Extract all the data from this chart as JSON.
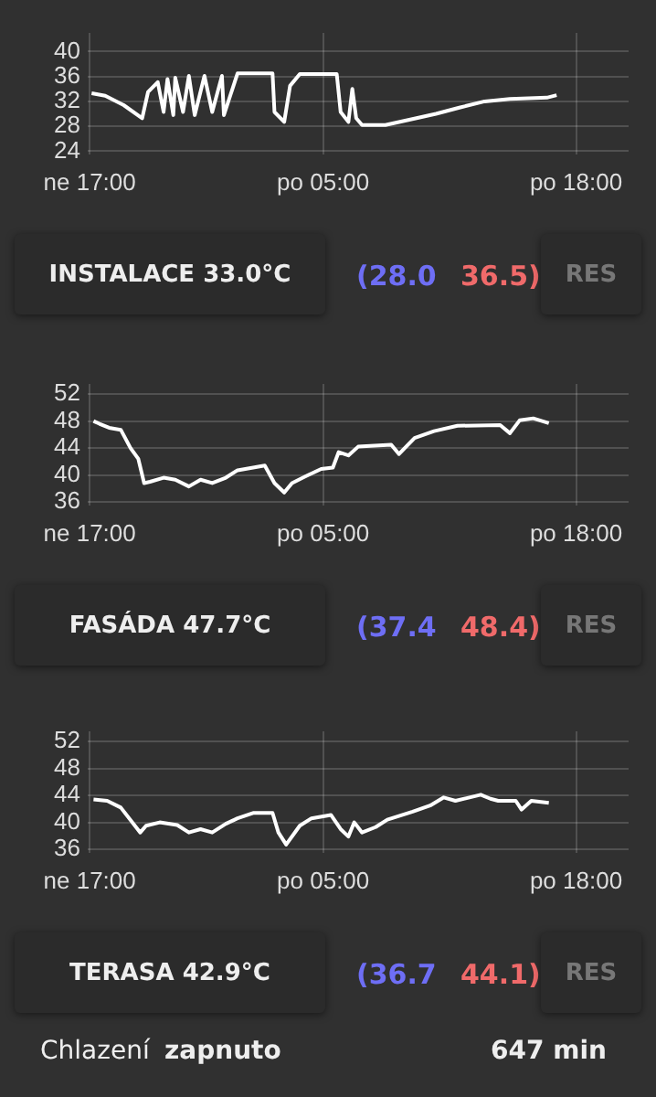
{
  "chart_data": [
    {
      "type": "line",
      "x": [
        "--01-07T17:06",
        "--01-07T17:48",
        "--01-07T18:45",
        "--01-07T19:42",
        "--01-07T20:00",
        "--01-07T20:30",
        "--01-07T20:48",
        "--01-07T21:00",
        "--01-07T21:18",
        "--01-07T21:24",
        "--01-07T21:48",
        "--01-07T22:06",
        "--01-07T22:24",
        "--01-07T22:54",
        "--01-07T23:18",
        "--01-07T23:48",
        "--01-07T23:54",
        "--01-08T00:36",
        "--01-08T02:24",
        "--01-08T02:30",
        "--01-08T03:00",
        "--01-08T03:18",
        "--01-08T03:48",
        "--01-08T05:42",
        "--01-08T05:54",
        "--01-08T06:18",
        "--01-08T06:30",
        "--01-08T06:42",
        "--01-08T07:00",
        "--01-08T08:12",
        "--01-08T09:48",
        "--01-08T10:48",
        "--01-08T12:00",
        "--01-08T13:18",
        "--01-08T14:36",
        "--01-08T16:30",
        "--01-08T17:00"
      ],
      "series": [
        {
          "color": "#ffffff",
          "values": [
            33.3,
            32.9,
            31.4,
            29.3,
            33.5,
            35.1,
            30.3,
            35.6,
            29.8,
            35.8,
            30.3,
            36.1,
            29.8,
            36.1,
            30.3,
            36.1,
            29.8,
            36.5,
            36.5,
            30.3,
            28.7,
            34.5,
            36.4,
            36.4,
            30.3,
            28.7,
            34.0,
            29.3,
            28.2,
            28.2,
            29.3,
            30.0,
            31.0,
            32.0,
            32.4,
            32.6,
            33.0
          ]
        }
      ],
      "xlim": [
        "--01-07T16:54",
        "--01-08T20:42"
      ],
      "xticks": [
        {
          "value": "--01-07T17:00",
          "label": "ne 17:00"
        },
        {
          "value": "--01-08T05:00",
          "label": "po 05:00"
        },
        {
          "value": "--01-08T18:00",
          "label": "po 18:00"
        }
      ],
      "ylim": [
        23.5,
        43
      ],
      "yticks": [
        24,
        28,
        32,
        36,
        40
      ],
      "grid": true,
      "legend": false,
      "marker": "none",
      "annotations": [
        "INSTALACE 33.0°C",
        "(28.0",
        "36.5)",
        "RES"
      ]
    },
    {
      "type": "line",
      "x": [
        "--01-07T17:12",
        "--01-07T17:30",
        "--01-07T18:00",
        "--01-07T18:36",
        "--01-07T19:06",
        "--01-07T19:30",
        "--01-07T19:48",
        "--01-07T20:06",
        "--01-07T20:48",
        "--01-07T21:24",
        "--01-07T22:06",
        "--01-07T22:42",
        "--01-07T23:18",
        "--01-08T00:00",
        "--01-08T00:36",
        "--01-08T02:00",
        "--01-08T02:30",
        "--01-08T03:00",
        "--01-08T03:24",
        "--01-08T04:06",
        "--01-08T04:54",
        "--01-08T05:30",
        "--01-08T05:48",
        "--01-08T06:18",
        "--01-08T06:48",
        "--01-08T08:30",
        "--01-08T08:54",
        "--01-08T09:42",
        "--01-08T10:42",
        "--01-08T11:54",
        "--01-08T14:06",
        "--01-08T14:36",
        "--01-08T15:06",
        "--01-08T15:48",
        "--01-08T16:36"
      ],
      "series": [
        {
          "color": "#ffffff",
          "values": [
            48.0,
            47.6,
            47.0,
            46.7,
            44.0,
            42.4,
            38.8,
            39.0,
            39.6,
            39.3,
            38.3,
            39.3,
            38.8,
            39.6,
            40.7,
            41.4,
            38.8,
            37.4,
            38.8,
            39.8,
            40.9,
            41.1,
            43.4,
            42.9,
            44.2,
            44.5,
            43.1,
            45.5,
            46.5,
            47.3,
            47.4,
            46.2,
            48.1,
            48.4,
            47.7
          ]
        }
      ],
      "xlim": [
        "--01-07T16:54",
        "--01-08T20:42"
      ],
      "xticks": [
        {
          "value": "--01-07T17:00",
          "label": "ne 17:00"
        },
        {
          "value": "--01-08T05:00",
          "label": "po 05:00"
        },
        {
          "value": "--01-08T18:00",
          "label": "po 18:00"
        }
      ],
      "ylim": [
        35.5,
        53.5
      ],
      "yticks": [
        36,
        40,
        44,
        48,
        52
      ],
      "grid": true,
      "legend": false,
      "marker": "none",
      "annotations": [
        "FASÁDA 47.7°C",
        "(37.4",
        "48.4)",
        "RES"
      ]
    },
    {
      "type": "line",
      "x": [
        "--01-07T17:12",
        "--01-07T17:54",
        "--01-07T18:36",
        "--01-07T19:36",
        "--01-07T19:54",
        "--01-07T20:36",
        "--01-07T21:30",
        "--01-07T22:06",
        "--01-07T22:42",
        "--01-07T23:18",
        "--01-08T00:00",
        "--01-08T00:36",
        "--01-08T01:24",
        "--01-08T02:24",
        "--01-08T02:42",
        "--01-08T03:06",
        "--01-08T03:48",
        "--01-08T04:24",
        "--01-08T05:24",
        "--01-08T05:54",
        "--01-08T06:18",
        "--01-08T06:36",
        "--01-08T07:00",
        "--01-08T07:42",
        "--01-08T08:18",
        "--01-08T09:36",
        "--01-08T10:30",
        "--01-08T11:12",
        "--01-08T11:48",
        "--01-08T13:06",
        "--01-08T13:36",
        "--01-08T14:00",
        "--01-08T14:54",
        "--01-08T15:12",
        "--01-08T15:42",
        "--01-08T16:36"
      ],
      "series": [
        {
          "color": "#ffffff",
          "values": [
            43.4,
            43.2,
            42.2,
            38.5,
            39.5,
            40.0,
            39.6,
            38.5,
            39.0,
            38.5,
            39.8,
            40.6,
            41.4,
            41.4,
            38.5,
            36.7,
            39.5,
            40.6,
            41.1,
            39.0,
            37.9,
            40.0,
            38.5,
            39.3,
            40.4,
            41.6,
            42.5,
            43.7,
            43.2,
            44.1,
            43.5,
            43.2,
            43.2,
            41.9,
            43.2,
            42.9
          ]
        }
      ],
      "xlim": [
        "--01-07T16:54",
        "--01-08T20:42"
      ],
      "xticks": [
        {
          "value": "--01-07T17:00",
          "label": "ne 17:00"
        },
        {
          "value": "--01-08T05:00",
          "label": "po 05:00"
        },
        {
          "value": "--01-08T18:00",
          "label": "po 18:00"
        }
      ],
      "ylim": [
        35.5,
        53.5
      ],
      "yticks": [
        36,
        40,
        44,
        48,
        52
      ],
      "grid": true,
      "legend": false,
      "marker": "none",
      "annotations": [
        "TERASA 42.9°C",
        "(36.7",
        "44.1)",
        "RES",
        "Chlazení",
        "zapnuto",
        "647 min"
      ]
    }
  ]
}
